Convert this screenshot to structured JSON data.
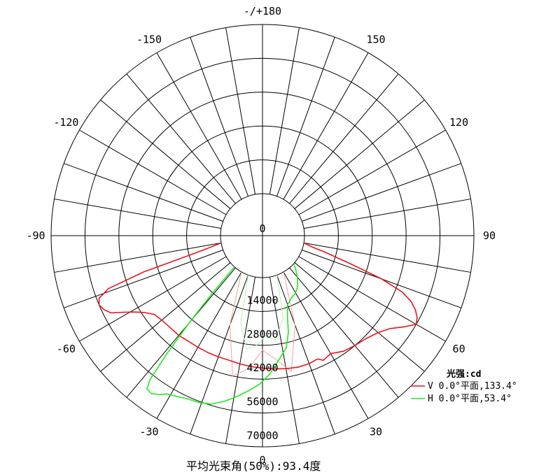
{
  "chart_data": {
    "type": "polar",
    "title": "",
    "radial_unit_label": "光强:cd",
    "radial_ticks": [
      "0",
      "14000",
      "28000",
      "42000",
      "56000",
      "70000"
    ],
    "radial_max": 70000,
    "outer_label_bottom": "0",
    "angle_labels": [
      {
        "angle": 180,
        "text": "-/+180"
      },
      {
        "angle": 150,
        "text": "150"
      },
      {
        "angle": -150,
        "text": "-150"
      },
      {
        "angle": 120,
        "text": "120"
      },
      {
        "angle": -120,
        "text": "-120"
      },
      {
        "angle": 90,
        "text": "90"
      },
      {
        "angle": -90,
        "text": "-90"
      },
      {
        "angle": 60,
        "text": "60"
      },
      {
        "angle": -60,
        "text": "-60"
      },
      {
        "angle": 30,
        "text": "30"
      },
      {
        "angle": -30,
        "text": "-30"
      }
    ],
    "spoke_step_deg": 10,
    "grid": true,
    "legend_position": "bottom-right",
    "series": [
      {
        "name": "V 0.0°平面,133.4°",
        "color": "#e8141e",
        "points": [
          [
            -80,
            0
          ],
          [
            -77,
            6000
          ],
          [
            -75,
            14000
          ],
          [
            -73,
            34000
          ],
          [
            -71,
            50000
          ],
          [
            -69,
            55000
          ],
          [
            -67,
            56000
          ],
          [
            -65,
            55000
          ],
          [
            -63,
            53000
          ],
          [
            -61,
            48000
          ],
          [
            -59,
            44000
          ],
          [
            -57,
            41000
          ],
          [
            -54,
            38000
          ],
          [
            -50,
            37000
          ],
          [
            -45,
            36500
          ],
          [
            -40,
            36500
          ],
          [
            -35,
            36000
          ],
          [
            -30,
            36000
          ],
          [
            -25,
            36000
          ],
          [
            -20,
            36000
          ],
          [
            -15,
            36000
          ],
          [
            -10,
            36500
          ],
          [
            -5,
            37000
          ],
          [
            0,
            37500
          ],
          [
            5,
            38000
          ],
          [
            10,
            38500
          ],
          [
            15,
            39000
          ],
          [
            20,
            39000
          ],
          [
            24,
            38500
          ],
          [
            26,
            40000
          ],
          [
            30,
            39000
          ],
          [
            35,
            41000
          ],
          [
            40,
            42000
          ],
          [
            45,
            43000
          ],
          [
            50,
            45000
          ],
          [
            54,
            48000
          ],
          [
            57,
            52000
          ],
          [
            60,
            56000
          ],
          [
            62,
            55000
          ],
          [
            64,
            53000
          ],
          [
            66,
            50000
          ],
          [
            68,
            45000
          ],
          [
            70,
            35000
          ],
          [
            72,
            22000
          ],
          [
            75,
            10000
          ],
          [
            77,
            4000
          ],
          [
            80,
            0
          ]
        ]
      },
      {
        "name": "H 0.0°平面,53.4°",
        "color": "#22ea22",
        "points": [
          [
            -42,
            0
          ],
          [
            -41,
            15000
          ],
          [
            -40,
            30000
          ],
          [
            -39,
            45000
          ],
          [
            -38,
            58000
          ],
          [
            -37,
            62000
          ],
          [
            -35,
            62500
          ],
          [
            -33,
            61000
          ],
          [
            -31,
            59000
          ],
          [
            -28,
            58000
          ],
          [
            -25,
            57000
          ],
          [
            -21,
            56500
          ],
          [
            -17,
            55500
          ],
          [
            -13,
            53000
          ],
          [
            -9,
            50000
          ],
          [
            -5,
            47000
          ],
          [
            -1,
            44000
          ],
          [
            3,
            40000
          ],
          [
            7,
            35000
          ],
          [
            12,
            30000
          ],
          [
            15,
            24000
          ],
          [
            17,
            18000
          ],
          [
            20,
            13000
          ],
          [
            25,
            11000
          ],
          [
            30,
            10000
          ],
          [
            35,
            8000
          ],
          [
            40,
            5000
          ],
          [
            45,
            2000
          ],
          [
            48,
            0
          ]
        ]
      }
    ],
    "faint_series_colors": [
      "#f4a0a0",
      "#b8f0b8"
    ]
  },
  "footer": {
    "label": "平均光束角(50%):93.4度"
  }
}
